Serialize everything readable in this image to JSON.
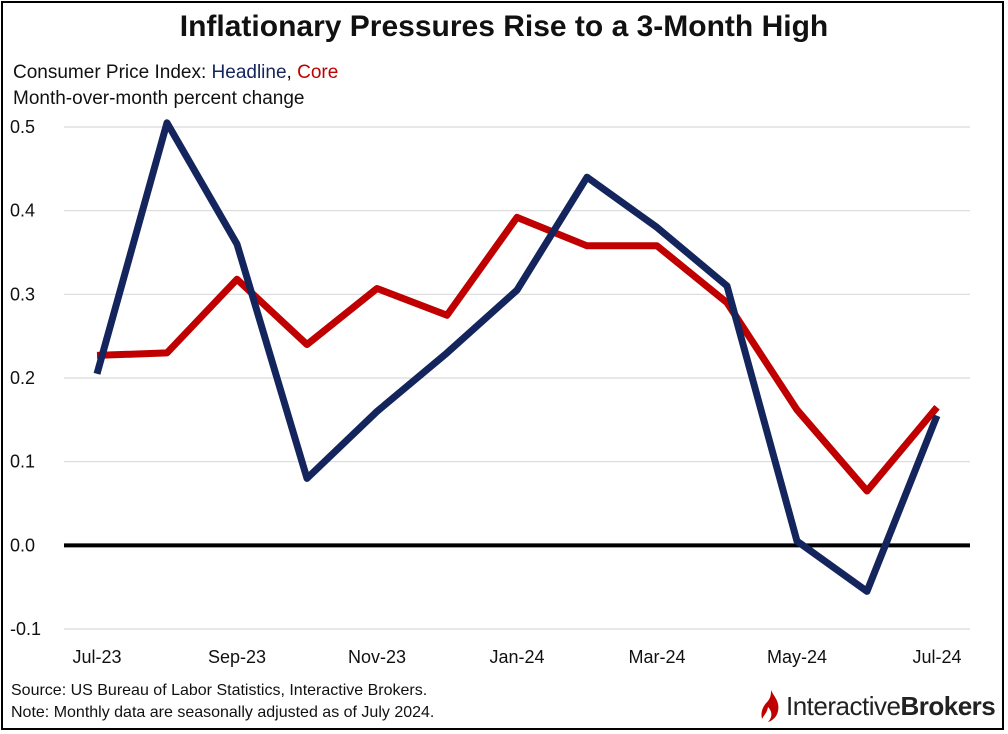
{
  "title": "Inflationary Pressures Rise to a 3-Month High",
  "subtitle": {
    "prefix": "Consumer Price Index: ",
    "headline_label": "Headline",
    "separator": ", ",
    "core_label": "Core",
    "line2": "Month-over-month percent change"
  },
  "footer": {
    "source": "Source: US Bureau of Labor Statistics, Interactive Brokers.",
    "note": "Note: Monthly data are seasonally adjusted as of July 2024."
  },
  "brand": {
    "part1": "Interactive",
    "part2": "Brokers",
    "color": "#c00000"
  },
  "chart_data": {
    "type": "line",
    "title": "Inflationary Pressures Rise to a 3-Month High",
    "xlabel": "",
    "ylabel": "Month-over-month percent change",
    "categories": [
      "Jul-23",
      "Aug-23",
      "Sep-23",
      "Oct-23",
      "Nov-23",
      "Dec-23",
      "Jan-24",
      "Feb-24",
      "Mar-24",
      "Apr-24",
      "May-24",
      "Jun-24",
      "Jul-24"
    ],
    "x_tick_labels": [
      "Jul-23",
      "Sep-23",
      "Nov-23",
      "Jan-24",
      "Mar-24",
      "May-24",
      "Jul-24"
    ],
    "y_tick_labels": [
      "0.5",
      "0.4",
      "0.3",
      "0.2",
      "0.1",
      "0.0",
      "-0.1"
    ],
    "ylim": [
      -0.1,
      0.5
    ],
    "grid": true,
    "series": [
      {
        "name": "Headline",
        "color": "#13255c",
        "values": [
          0.205,
          0.505,
          0.36,
          0.08,
          0.16,
          0.23,
          0.305,
          0.44,
          0.38,
          0.31,
          0.005,
          -0.055,
          0.155
        ]
      },
      {
        "name": "Core",
        "color": "#c00000",
        "values": [
          0.227,
          0.23,
          0.318,
          0.24,
          0.307,
          0.275,
          0.392,
          0.358,
          0.358,
          0.29,
          0.162,
          0.065,
          0.165
        ]
      }
    ]
  }
}
